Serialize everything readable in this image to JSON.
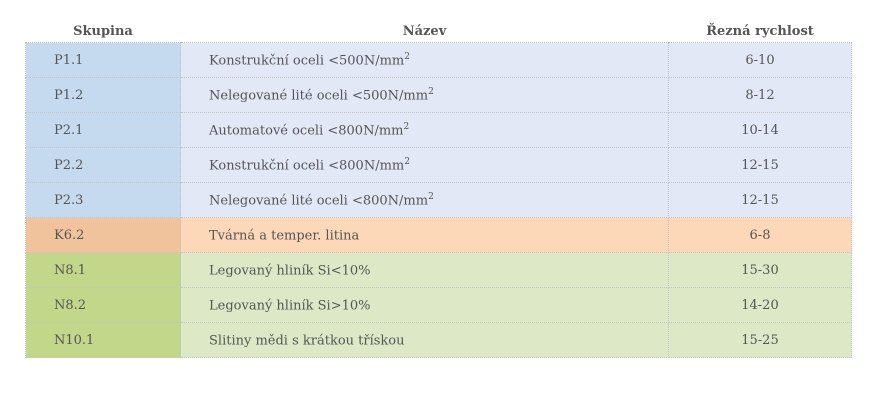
{
  "headers": {
    "group": "Skupina",
    "name": "Název",
    "speed": "Řezná rychlost"
  },
  "colors": {
    "P": {
      "group_bg": "#c6daef",
      "row_bg": "#e2e8f5"
    },
    "K": {
      "group_bg": "#f1c39c",
      "row_bg": "#fcd8b9"
    },
    "N": {
      "group_bg": "#c3d78a",
      "row_bg": "#dde8c7"
    }
  },
  "rows": [
    {
      "group": "P1.1",
      "name": "Konstrukční oceli <500N/mm",
      "sup": "2",
      "speed": "6-10",
      "cls": "P"
    },
    {
      "group": "P1.2",
      "name": "Nelegované lité oceli <500N/mm",
      "sup": "2",
      "speed": "8-12",
      "cls": "P"
    },
    {
      "group": "P2.1",
      "name": "Automatové oceli <800N/mm",
      "sup": "2",
      "speed": "10-14",
      "cls": "P"
    },
    {
      "group": "P2.2",
      "name": "Konstrukční oceli <800N/mm",
      "sup": "2",
      "speed": "12-15",
      "cls": "P"
    },
    {
      "group": "P2.3",
      "name": "Nelegované lité oceli <800N/mm",
      "sup": "2",
      "speed": "12-15",
      "cls": "P"
    },
    {
      "group": "K6.2",
      "name": "Tvárná a temper. litina",
      "sup": "",
      "speed": "6-8",
      "cls": "K"
    },
    {
      "group": "N8.1",
      "name": "Legovaný hliník Si<10%",
      "sup": "",
      "speed": "15-30",
      "cls": "N"
    },
    {
      "group": "N8.2",
      "name": "Legovaný hliník Si>10%",
      "sup": "",
      "speed": "14-20",
      "cls": "N"
    },
    {
      "group": "N10.1",
      "name": "Slitiny mědi s krátkou třískou",
      "sup": "",
      "speed": "15-25",
      "cls": "N"
    }
  ]
}
